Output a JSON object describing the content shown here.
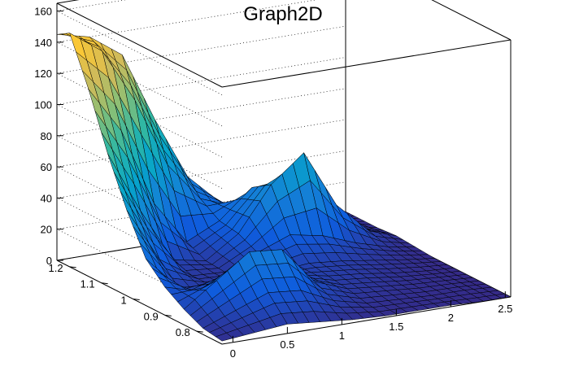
{
  "chart_data": {
    "type": "surface",
    "title": "Graph2D",
    "xlabel": "",
    "ylabel": "",
    "zlabel": "",
    "xlim": [
      -0.1,
      2.55
    ],
    "ylim": [
      0.72,
      1.24
    ],
    "zlim": [
      0,
      165
    ],
    "x_ticks": [
      0,
      0.5,
      1,
      1.5,
      2,
      2.5
    ],
    "x_tick_labels": [
      "0",
      "0.5",
      "1",
      "1.5",
      "2",
      "2.5"
    ],
    "y_ticks": [
      0.8,
      0.9,
      1.0,
      1.1,
      1.2
    ],
    "y_tick_labels": [
      "0.8",
      "0.9",
      "1",
      "1.1",
      "1.2"
    ],
    "z_ticks": [
      0,
      20,
      40,
      60,
      80,
      100,
      120,
      140,
      160
    ],
    "z_tick_labels": [
      "0",
      "20",
      "40",
      "60",
      "80",
      "100",
      "120",
      "140",
      "160"
    ],
    "grid": true,
    "colormap": [
      "#352a87",
      "#0f5cdd",
      "#1481d6",
      "#06a4ca",
      "#2eb7a4",
      "#87bf77",
      "#d1bb59",
      "#fec832",
      "#f9fb0e"
    ],
    "x": [
      -0.1,
      0.2,
      0.5,
      0.8,
      1.1,
      1.4,
      1.7,
      2.0,
      2.3,
      2.55
    ],
    "y": [
      0.72,
      0.78,
      0.84,
      0.9,
      0.96,
      1.02,
      1.08,
      1.14,
      1.2,
      1.24
    ],
    "z": [
      [
        2,
        4,
        6,
        4,
        2,
        1,
        1,
        1,
        0,
        0
      ],
      [
        4,
        12,
        20,
        18,
        8,
        3,
        2,
        1,
        1,
        0
      ],
      [
        10,
        25,
        40,
        38,
        14,
        6,
        4,
        2,
        1,
        0
      ],
      [
        18,
        12,
        22,
        20,
        12,
        8,
        6,
        3,
        1,
        0
      ],
      [
        30,
        8,
        6,
        6,
        8,
        10,
        8,
        5,
        2,
        0
      ],
      [
        55,
        20,
        6,
        5,
        14,
        22,
        18,
        10,
        4,
        1
      ],
      [
        85,
        45,
        10,
        6,
        20,
        48,
        65,
        28,
        8,
        2
      ],
      [
        120,
        90,
        40,
        12,
        22,
        40,
        35,
        15,
        5,
        1
      ],
      [
        150,
        135,
        100,
        55,
        30,
        22,
        14,
        6,
        2,
        1
      ],
      [
        145,
        140,
        125,
        80,
        40,
        20,
        10,
        4,
        2,
        1
      ]
    ]
  }
}
